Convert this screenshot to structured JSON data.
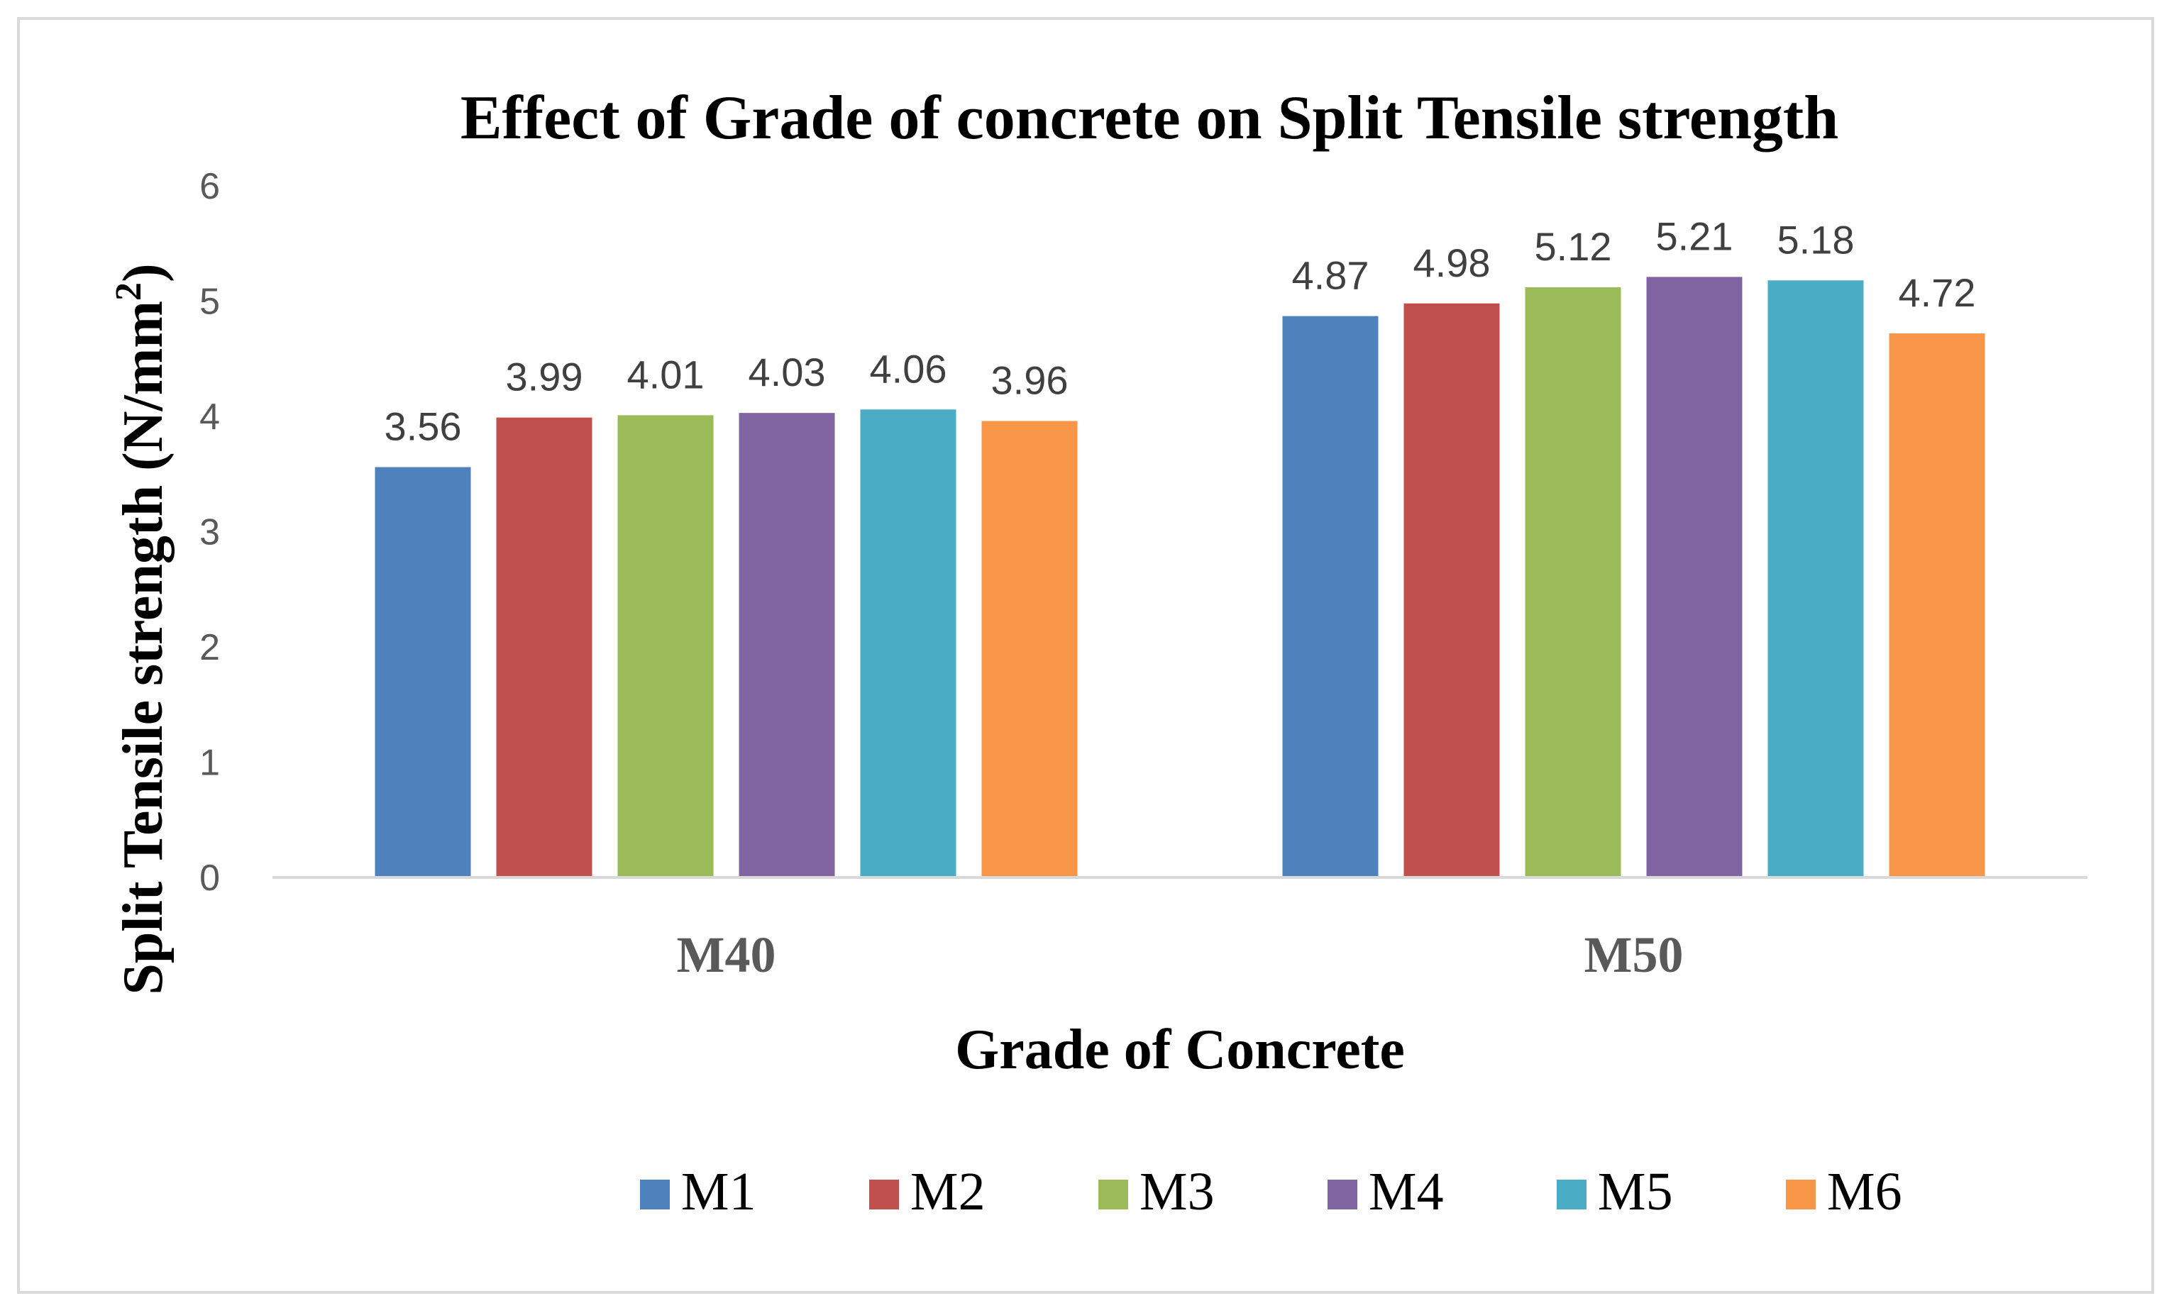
{
  "chart_data": {
    "type": "bar",
    "title": "Effect of Grade  of concrete on Split Tensile strength",
    "xlabel": "Grade of Concrete",
    "ylabel": "Split Tensile strength (N/mm",
    "ylabel_superscript": "2",
    "ylabel_close": ")",
    "categories": [
      "M40",
      "M50"
    ],
    "ylim": [
      0,
      6
    ],
    "yticks": [
      "0",
      "1",
      "2",
      "3",
      "4",
      "5",
      "6"
    ],
    "grid": false,
    "legend_position": "bottom",
    "series": [
      {
        "name": "M1",
        "values": [
          3.56,
          4.87
        ],
        "labels": [
          "3.56",
          "4.87"
        ],
        "color": "#4f81bd"
      },
      {
        "name": "M2",
        "values": [
          3.99,
          4.98
        ],
        "labels": [
          "3.99",
          "4.98"
        ],
        "color": "#c0504d"
      },
      {
        "name": "M3",
        "values": [
          4.01,
          5.12
        ],
        "labels": [
          "4.01",
          "5.12"
        ],
        "color": "#9bbb59"
      },
      {
        "name": "M4",
        "values": [
          4.03,
          5.21
        ],
        "labels": [
          "4.03",
          "5.21"
        ],
        "color": "#8064a2"
      },
      {
        "name": "M5",
        "values": [
          4.06,
          5.18
        ],
        "labels": [
          "4.06",
          "5.18"
        ],
        "color": "#4bacc6"
      },
      {
        "name": "M6",
        "values": [
          3.96,
          4.72
        ],
        "labels": [
          "3.96",
          "4.72"
        ],
        "color": "#f79646"
      }
    ]
  }
}
